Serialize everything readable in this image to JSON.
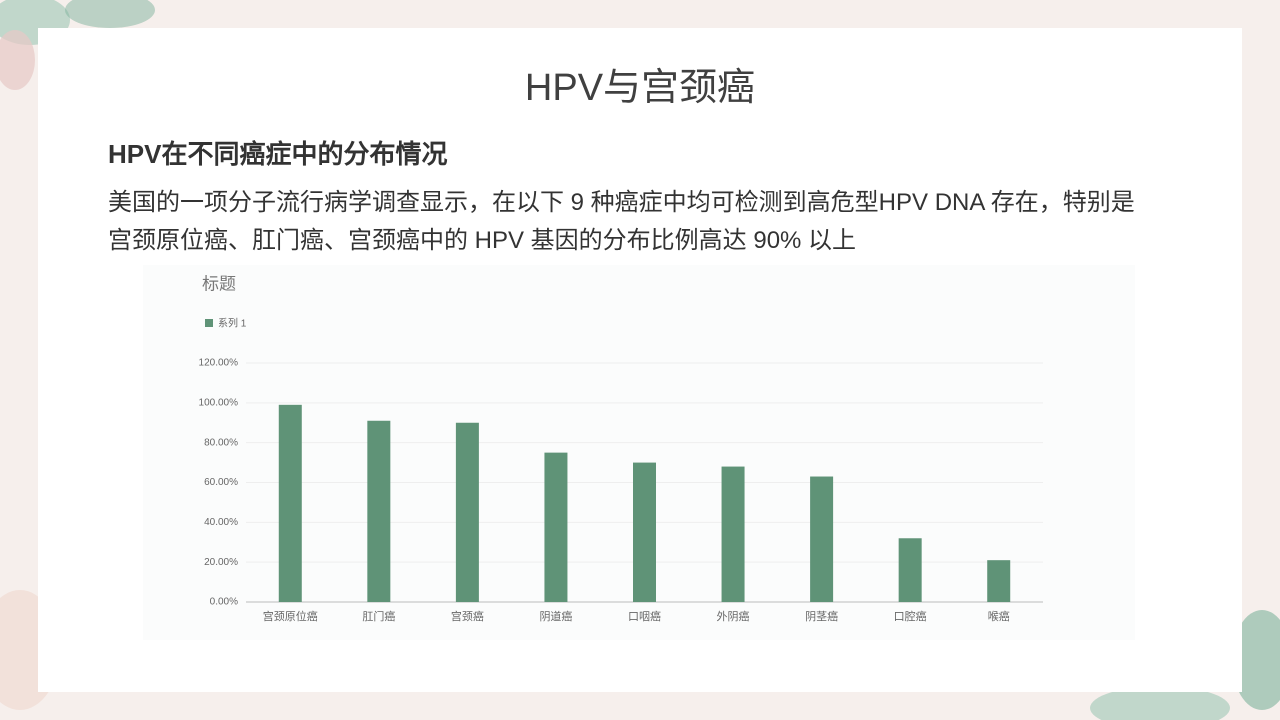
{
  "slide": {
    "title": "HPV与宫颈癌",
    "heading": "HPV在不同癌症中的分布情况",
    "paragraph_lines": [
      "美国的一项分子流行病学调查显示，在以下 9 种癌症中均可检测到高危型HPV  DNA 存在，特别是",
      "宫颈原位癌、肛门癌、宫颈癌中的 HPV 基因的分布比例高达 90% 以上"
    ]
  },
  "chart_data": {
    "type": "bar",
    "title": "标题",
    "categories": [
      "宫颈原位癌",
      "肛门癌",
      "宫颈癌",
      "阴道癌",
      "口咽癌",
      "外阴癌",
      "阴茎癌",
      "口腔癌",
      "喉癌"
    ],
    "series": [
      {
        "name": "系列 1",
        "color": "#5f9377",
        "values": [
          99,
          91,
          90,
          75,
          70,
          68,
          63,
          32,
          21
        ]
      }
    ],
    "ylim": [
      0,
      120
    ],
    "yticks": [
      {
        "value": 0,
        "label": "0.00%"
      },
      {
        "value": 20,
        "label": "20.00%"
      },
      {
        "value": 40,
        "label": "40.00%"
      },
      {
        "value": 60,
        "label": "60.00%"
      },
      {
        "value": 80,
        "label": "80.00%"
      },
      {
        "value": 100,
        "label": "100.00%"
      },
      {
        "value": 120,
        "label": "120.00%"
      }
    ],
    "grid": true,
    "legend": "top-left"
  }
}
